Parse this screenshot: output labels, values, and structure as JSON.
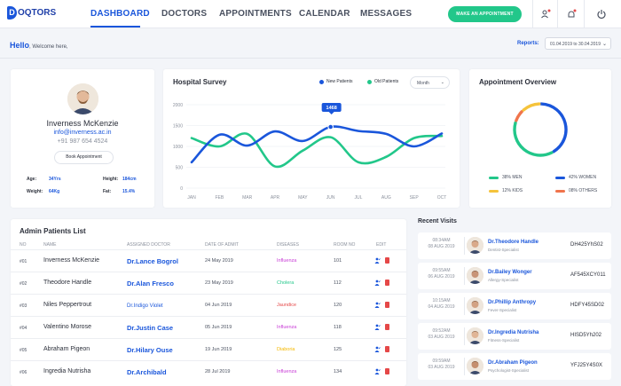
{
  "nav": {
    "logo_letter": "D",
    "logo_text": "OQTORS",
    "links": [
      "DASHBOARD",
      "DOCTORS",
      "APPOINTMENTS",
      "CALENDAR",
      "MESSAGES"
    ],
    "cta": "MAKE AN APPOINTMENT",
    "accent": "#1a56db",
    "cta_color": "#22c78a"
  },
  "greeting": {
    "hello": "Hello",
    "welcome": ", Welcome here,"
  },
  "reports": {
    "label": "Reports:",
    "range": "01.04.2019 to 30.04.2019"
  },
  "profile": {
    "name": "Inverness McKenzie",
    "email": "info@inverness.ac.in",
    "phone": "+91 987 654 4524",
    "book": "Book Appointment",
    "stats": [
      {
        "label": "Age:",
        "value": "34Yrs"
      },
      {
        "label": "Height:",
        "value": "184cm"
      },
      {
        "label": "Weight:",
        "value": "64Kg"
      },
      {
        "label": "Fat:",
        "value": "15.4%"
      }
    ]
  },
  "chart_data": {
    "type": "line",
    "title": "Hospital Survey",
    "categories": [
      "JAN",
      "FEB",
      "MAR",
      "APR",
      "MAY",
      "JUN",
      "JUL",
      "AUG",
      "SEP",
      "OCT"
    ],
    "series": [
      {
        "name": "New Patients",
        "color": "#1a56db",
        "values": [
          620,
          1280,
          1020,
          1360,
          1130,
          1468,
          1370,
          1300,
          1000,
          1310
        ]
      },
      {
        "name": "Old Patients",
        "color": "#22c78a",
        "values": [
          1200,
          1000,
          1300,
          520,
          900,
          1220,
          620,
          750,
          1200,
          1250
        ]
      }
    ],
    "yticks": [
      "0",
      "500",
      "1000",
      "1500",
      "2000"
    ],
    "ylim": [
      0,
      2000
    ],
    "tooltip": "1468",
    "period": "Month",
    "grid": true
  },
  "overview": {
    "title": "Appointment Overview",
    "legend": [
      "38% MEN",
      "42% WOMEN",
      "12% KIDS",
      "08% OTHERS"
    ],
    "segments": [
      {
        "label": "MEN",
        "value": 38,
        "color": "#22c78a"
      },
      {
        "label": "WOMEN",
        "value": 42,
        "color": "#1a56db"
      },
      {
        "label": "KIDS",
        "value": 12,
        "color": "#f5c33b"
      },
      {
        "label": "OTHERS",
        "value": 8,
        "color": "#f0744c"
      }
    ]
  },
  "patients": {
    "title": "Admin Patients List",
    "headers": [
      "NO",
      "NAME",
      "ASSIGNED DOCTOR",
      "DATE OF ADMIT",
      "DISEASES",
      "ROOM NO",
      "EDIT"
    ],
    "rows": [
      {
        "no": "#01",
        "name": "Inverness McKenzie",
        "doctor": "Dr.Lance Bogrol",
        "date": "24 May 2019",
        "disease": "Influenza",
        "disease_color": "#c83cd6",
        "room": "101"
      },
      {
        "no": "#02",
        "name": "Theodore Handle",
        "doctor": "Dr.Alan Fresco",
        "date": "23 May 2019",
        "disease": "Cholera",
        "disease_color": "#22c78a",
        "room": "112"
      },
      {
        "no": "#03",
        "name": "Niles Peppertrout",
        "doctor": "Dr.Indigo Violet",
        "date": "04 Jun 2019",
        "disease": "Jaundice",
        "disease_color": "#e54848",
        "room": "120"
      },
      {
        "no": "#04",
        "name": "Valentino Morose",
        "doctor": "Dr.Justin Case",
        "date": "05 Jun 2019",
        "disease": "Influenza",
        "disease_color": "#c83cd6",
        "room": "118"
      },
      {
        "no": "#05",
        "name": "Abraham Pigeon",
        "doctor": "Dr.Hilary Ouse",
        "date": "19 Jun 2019",
        "disease": "Diaboria",
        "disease_color": "#f5b800",
        "room": "125"
      },
      {
        "no": "#06",
        "name": "Ingredia Nutrisha",
        "doctor": "Dr.Archibald",
        "date": "28 Jul 2019",
        "disease": "Influenza",
        "disease_color": "#c83cd6",
        "room": "134"
      }
    ]
  },
  "visits": {
    "title": "Recent Visits",
    "items": [
      {
        "time": "08:34AM",
        "date": "08 AUG 2019",
        "name": "Dr.Theodore Handle",
        "spec": "Dentist-Specialist",
        "code": "DH425YhS02"
      },
      {
        "time": "09:55AM",
        "date": "06 AUG 2019",
        "name": "Dr.Bailey Wonger",
        "spec": "Allergy-Specialist",
        "code": "AF545XCY011"
      },
      {
        "time": "10:15AM",
        "date": "04 AUG 2019",
        "name": "Dr.Phillip Anthropy",
        "spec": "Fever-Specialist",
        "code": "HDFY45SD02"
      },
      {
        "time": "09:52AM",
        "date": "03 AUG 2019",
        "name": "Dr.Ingredia Nutrisha",
        "spec": "Fitness-Specialist",
        "code": "HISD5Yh202"
      },
      {
        "time": "09:59AM",
        "date": "03 AUG 2019",
        "name": "Dr.Abraham Pigeon",
        "spec": "Psychologist-Specialist",
        "code": "YFJ25Y4S0X"
      }
    ]
  }
}
